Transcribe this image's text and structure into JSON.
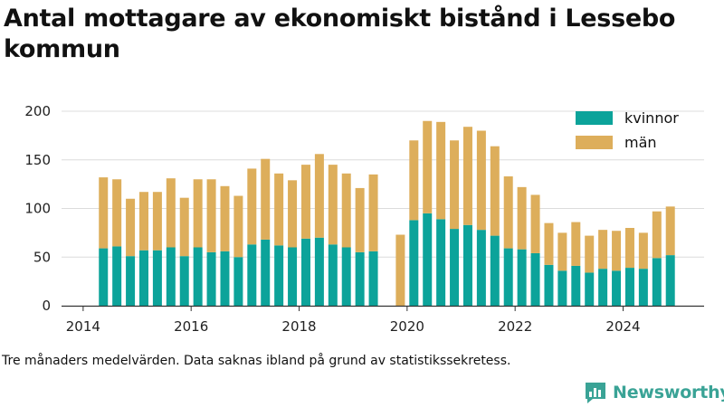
{
  "title": "Antal mottagare av ekonomiskt bistånd i Lessebo kommun",
  "note": "Tre månaders medelvärden. Data saknas ibland på grund av statistikssekretess.",
  "brand": "Newsworthy",
  "colors": {
    "kvinnor": "#0ca39a",
    "man": "#ddae5b",
    "grid": "#dcdcdc",
    "axis": "#333333"
  },
  "chart_data": {
    "type": "bar",
    "stacked": true,
    "title": "Antal mottagare av ekonomiskt bistånd i Lessebo kommun",
    "xlabel": "",
    "ylabel": "",
    "xlim": [
      2013.6,
      2025.5
    ],
    "ylim": [
      0,
      200
    ],
    "yticks": [
      0,
      50,
      100,
      150,
      200
    ],
    "xticks": [
      2014,
      2016,
      2018,
      2020,
      2022,
      2024
    ],
    "grid": true,
    "legend": "top-right",
    "x": [
      2014.375,
      2014.625,
      2014.875,
      2015.125,
      2015.375,
      2015.625,
      2015.875,
      2016.125,
      2016.375,
      2016.625,
      2016.875,
      2017.125,
      2017.375,
      2017.625,
      2017.875,
      2018.125,
      2018.375,
      2018.625,
      2018.875,
      2019.125,
      2019.375,
      2019.625,
      2019.875,
      2020.125,
      2020.375,
      2020.625,
      2020.875,
      2021.125,
      2021.375,
      2021.625,
      2021.875,
      2022.125,
      2022.375,
      2022.625,
      2022.875,
      2023.125,
      2023.375,
      2023.625,
      2023.875,
      2024.125,
      2024.375,
      2024.625,
      2024.875
    ],
    "series": [
      {
        "name": "kvinnor",
        "values": [
          59,
          61,
          51,
          57,
          57,
          60,
          51,
          60,
          55,
          56,
          50,
          63,
          68,
          62,
          60,
          69,
          70,
          63,
          60,
          55,
          56,
          null,
          0,
          88,
          95,
          89,
          79,
          83,
          78,
          72,
          59,
          58,
          54,
          42,
          36,
          41,
          34,
          38,
          36,
          39,
          38,
          49,
          52
        ]
      },
      {
        "name": "män",
        "values": [
          73,
          69,
          59,
          60,
          60,
          71,
          60,
          70,
          75,
          67,
          63,
          78,
          83,
          74,
          69,
          76,
          86,
          82,
          76,
          66,
          79,
          null,
          73,
          82,
          95,
          100,
          91,
          101,
          102,
          92,
          74,
          64,
          60,
          43,
          39,
          45,
          38,
          40,
          41,
          41,
          37,
          48,
          50
        ]
      }
    ]
  }
}
